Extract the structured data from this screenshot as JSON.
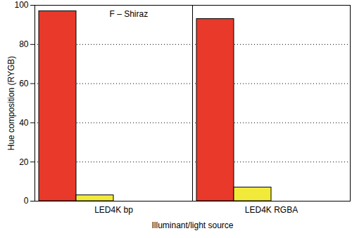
{
  "chart_data": {
    "type": "bar",
    "categories": [
      "LED4K bp",
      "LED4K RGBA"
    ],
    "series": [
      {
        "color": "#e8392a",
        "values": [
          97,
          93
        ]
      },
      {
        "color": "#f2ea3a",
        "values": [
          3,
          7
        ]
      },
      {
        "color": "#3aa84a",
        "values": [
          0,
          0
        ]
      },
      {
        "color": "#2a5fd0",
        "values": [
          0,
          0
        ]
      }
    ],
    "x_label": "Illuminant/light source",
    "y_label": "Hue composition (RYGB)",
    "annotations": [
      "F – Shiraz"
    ],
    "ylim": [
      0,
      100
    ],
    "yticks": [
      0,
      20,
      40,
      60,
      80,
      100
    ],
    "grid": true
  }
}
